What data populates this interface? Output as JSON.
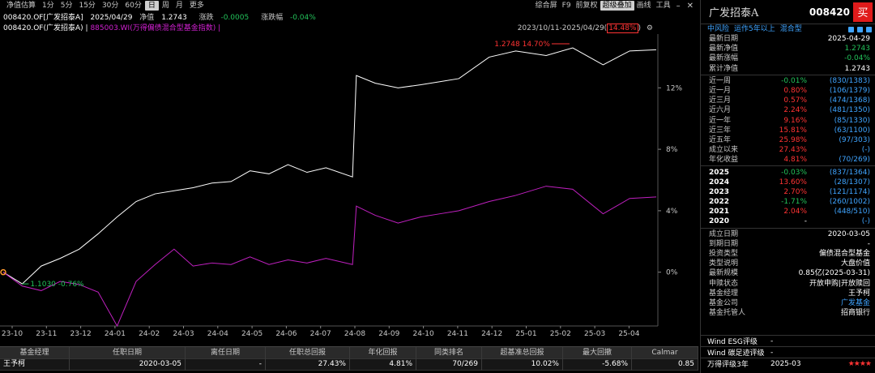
{
  "toolbar": {
    "left_items": [
      "净值估算",
      "1分",
      "5分",
      "15分",
      "30分",
      "60分",
      "日",
      "周",
      "月",
      "更多"
    ],
    "active_left": "日",
    "right_items": [
      "综合屏",
      "F9",
      "前复权",
      "超级叠加",
      "画线",
      "工具"
    ],
    "active_right": "超级叠加"
  },
  "info": {
    "code": "008420.OF[广发招泰A]",
    "date": "2025/04/29",
    "nav_label": "净值",
    "nav": "1.2743",
    "change_label": "涨跌",
    "change": "-0.0005",
    "change_pct_label": "涨跌幅",
    "change_pct": "-0.04%"
  },
  "legend": {
    "fund": "008420.OF(广发招泰A) |",
    "index": "885003.WI(万得偏债混合型基金指数) |",
    "range_text": "2023/10/11-2025/04/29(",
    "range_pct": "14.48%",
    "range_close": ")"
  },
  "chart_annotations": {
    "max_label_value": "1.2748",
    "max_label_pct": "14.70%",
    "min_label_value": "1.1030",
    "min_label_pct": "-0.76%"
  },
  "chart_data": {
    "type": "line",
    "x_ticks": [
      "23-10",
      "23-11",
      "23-12",
      "24-01",
      "24-02",
      "24-03",
      "24-04",
      "24-05",
      "24-06",
      "24-07",
      "24-08",
      "24-09",
      "24-10",
      "24-11",
      "24-12",
      "25-01",
      "25-02",
      "25-03",
      "25-04"
    ],
    "y_ticks": [
      "12%",
      "8%",
      "4%",
      "0%"
    ],
    "ylim": [
      -3.5,
      15.5
    ],
    "series": [
      {
        "name": "008420.OF(广发招泰A)",
        "color": "#ffffff",
        "values": [
          0.0,
          -0.76,
          0.4,
          0.9,
          1.5,
          2.5,
          3.6,
          4.6,
          5.1,
          5.3,
          5.5,
          5.8,
          5.9,
          6.6,
          6.4,
          7.0,
          6.5,
          6.8,
          6.2,
          12.8,
          12.3,
          12.0,
          12.2,
          12.4,
          12.6,
          14.0,
          14.4,
          14.1,
          14.6,
          13.5,
          14.4,
          14.48
        ],
        "x": [
          0,
          0.5,
          1,
          1.5,
          2,
          2.5,
          3,
          3.5,
          4,
          4.5,
          5,
          5.5,
          6,
          6.5,
          7,
          7.5,
          8,
          8.5,
          9.2,
          9.3,
          9.8,
          10.4,
          11,
          11.5,
          12,
          12.8,
          13.5,
          14.3,
          15,
          15.8,
          16.5,
          17.2
        ]
      },
      {
        "name": "885003.WI(万得偏债混合型基金指数)",
        "color": "#c020c0",
        "values": [
          0.0,
          -0.9,
          -1.2,
          -0.6,
          -0.8,
          -1.3,
          -3.5,
          -0.6,
          0.5,
          1.5,
          0.4,
          0.6,
          0.5,
          1.0,
          0.5,
          0.8,
          0.6,
          0.9,
          0.5,
          4.3,
          3.7,
          3.2,
          3.6,
          3.8,
          4.0,
          4.6,
          5.0,
          5.6,
          5.4,
          3.8,
          4.8,
          4.9
        ],
        "x": [
          0,
          0.5,
          1,
          1.5,
          2,
          2.5,
          3,
          3.5,
          4,
          4.5,
          5,
          5.5,
          6,
          6.5,
          7,
          7.5,
          8,
          8.5,
          9.2,
          9.3,
          9.8,
          10.4,
          11,
          11.5,
          12,
          12.8,
          13.5,
          14.3,
          15,
          15.8,
          16.5,
          17.2
        ]
      }
    ]
  },
  "bottom_table": {
    "headers": [
      "基金经理",
      "任职日期",
      "离任日期",
      "任职总回报",
      "年化回报",
      "同类排名",
      "超基准总回报",
      "最大回撤",
      "Calmar"
    ],
    "row": [
      "王予柯",
      "2020-03-05",
      "-",
      "27.43%",
      "4.81%",
      "70/269",
      "10.02%",
      "-5.68%",
      "0.85"
    ]
  },
  "panel": {
    "name": "广发招泰A",
    "code": "008420",
    "buy_label": "买",
    "tags": [
      "中风险",
      "运作5年以上",
      "混合型"
    ],
    "summary": [
      {
        "label": "最新日期",
        "value": "2025-04-29",
        "color": "white"
      },
      {
        "label": "最新净值",
        "value": "1.2743",
        "color": "green"
      },
      {
        "label": "最新涨幅",
        "value": "-0.04%",
        "color": "green"
      },
      {
        "label": "累计净值",
        "value": "1.2743",
        "color": "white"
      }
    ],
    "performance": [
      {
        "label": "近一周",
        "value": "-0.01%",
        "color": "green",
        "rank": "(830/1383)"
      },
      {
        "label": "近一月",
        "value": "0.80%",
        "color": "red",
        "rank": "(106/1379)"
      },
      {
        "label": "近三月",
        "value": "0.57%",
        "color": "red",
        "rank": "(474/1368)"
      },
      {
        "label": "近六月",
        "value": "2.24%",
        "color": "red",
        "rank": "(481/1350)"
      },
      {
        "label": "近一年",
        "value": "9.16%",
        "color": "red",
        "rank": "(85/1330)"
      },
      {
        "label": "近三年",
        "value": "15.81%",
        "color": "red",
        "rank": "(63/1100)"
      },
      {
        "label": "近五年",
        "value": "25.98%",
        "color": "red",
        "rank": "(97/303)"
      },
      {
        "label": "成立以来",
        "value": "27.43%",
        "color": "red",
        "rank": "(-)"
      },
      {
        "label": "年化收益",
        "value": "4.81%",
        "color": "red",
        "rank": "(70/269)"
      }
    ],
    "years": [
      {
        "label": "2025",
        "value": "-0.03%",
        "color": "green",
        "rank": "(837/1364)"
      },
      {
        "label": "2024",
        "value": "13.60%",
        "color": "red",
        "rank": "(28/1307)"
      },
      {
        "label": "2023",
        "value": "2.70%",
        "color": "red",
        "rank": "(121/1174)"
      },
      {
        "label": "2022",
        "value": "-1.71%",
        "color": "green",
        "rank": "(260/1002)"
      },
      {
        "label": "2021",
        "value": "2.04%",
        "color": "red",
        "rank": "(448/510)"
      },
      {
        "label": "2020",
        "value": "-",
        "color": "white",
        "rank": "(-)"
      }
    ],
    "details": [
      {
        "label": "成立日期",
        "value": "2020-03-05",
        "color": "white"
      },
      {
        "label": "到期日期",
        "value": "-",
        "color": "white"
      },
      {
        "label": "投资类型",
        "value": "偏债混合型基金",
        "color": "white"
      },
      {
        "label": "类型说明",
        "value": "大盘价值",
        "color": "white"
      },
      {
        "label": "最新规模",
        "value": "0.85亿(2025-03-31)",
        "color": "white"
      },
      {
        "label": "申赎状态",
        "value": "开放申购|开放赎回",
        "color": "white"
      },
      {
        "label": "基金经理",
        "value": "王予柯",
        "color": "white"
      },
      {
        "label": "基金公司",
        "value": "广发基金",
        "color": "blue"
      },
      {
        "label": "基金托管人",
        "value": "招商银行",
        "color": "white"
      }
    ],
    "footer": [
      {
        "label": "Wind ESG评级",
        "v1": "-",
        "v2": ""
      },
      {
        "label": "Wind 碳足迹评级",
        "v1": "-",
        "v2": ""
      },
      {
        "label": "万得评级3年",
        "v1": "2025-03",
        "v2": "★★★★"
      }
    ]
  }
}
